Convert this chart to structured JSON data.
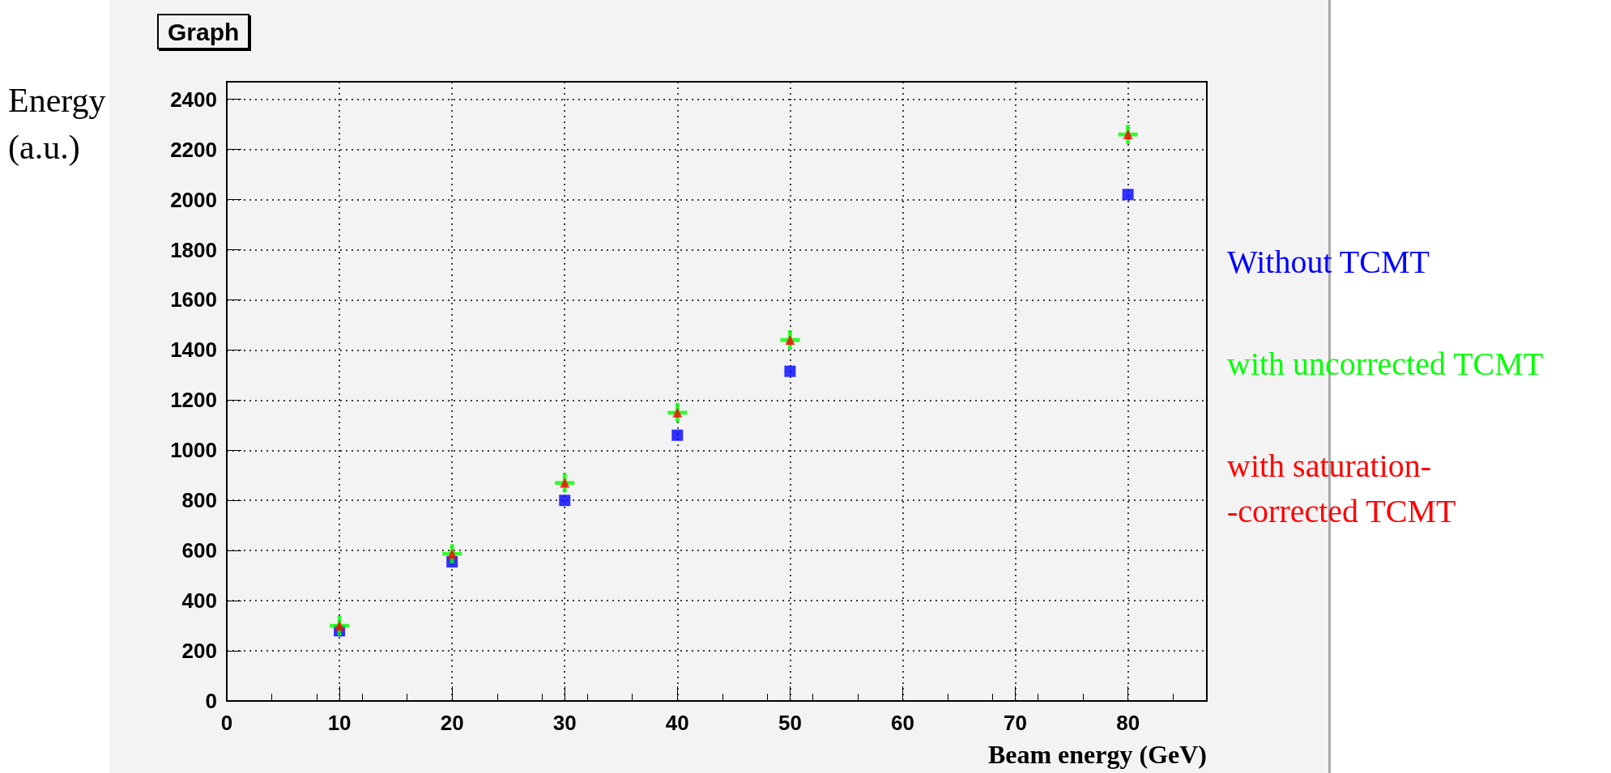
{
  "chart_data": {
    "type": "scatter",
    "title": "Graph",
    "xlabel": "Beam energy (GeV)",
    "ylabel": "Energy\n(a.u.)",
    "x": [
      10,
      20,
      30,
      40,
      50,
      80
    ],
    "series": [
      {
        "name": "Without TCMT",
        "color": "#0000ff",
        "marker": "square",
        "values": [
          280,
          555,
          800,
          1060,
          1315,
          2020
        ]
      },
      {
        "name": "with uncorrected TCMT",
        "color": "#00ff00",
        "marker": "cross",
        "values": [
          300,
          587,
          870,
          1150,
          1440,
          2260
        ]
      },
      {
        "name": "with saturation-\n-corrected TCMT",
        "color": "#ff0000",
        "marker": "triangle",
        "values": [
          300,
          587,
          870,
          1150,
          1440,
          2260
        ]
      }
    ],
    "xlim": [
      0,
      87
    ],
    "xticks": [
      0,
      10,
      20,
      30,
      40,
      50,
      60,
      70,
      80
    ],
    "ylim": [
      0,
      2470
    ],
    "yticks": [
      0,
      200,
      400,
      600,
      800,
      1000,
      1200,
      1400,
      1600,
      1800,
      2000,
      2200,
      2400
    ],
    "grid": true,
    "legend": "right"
  }
}
